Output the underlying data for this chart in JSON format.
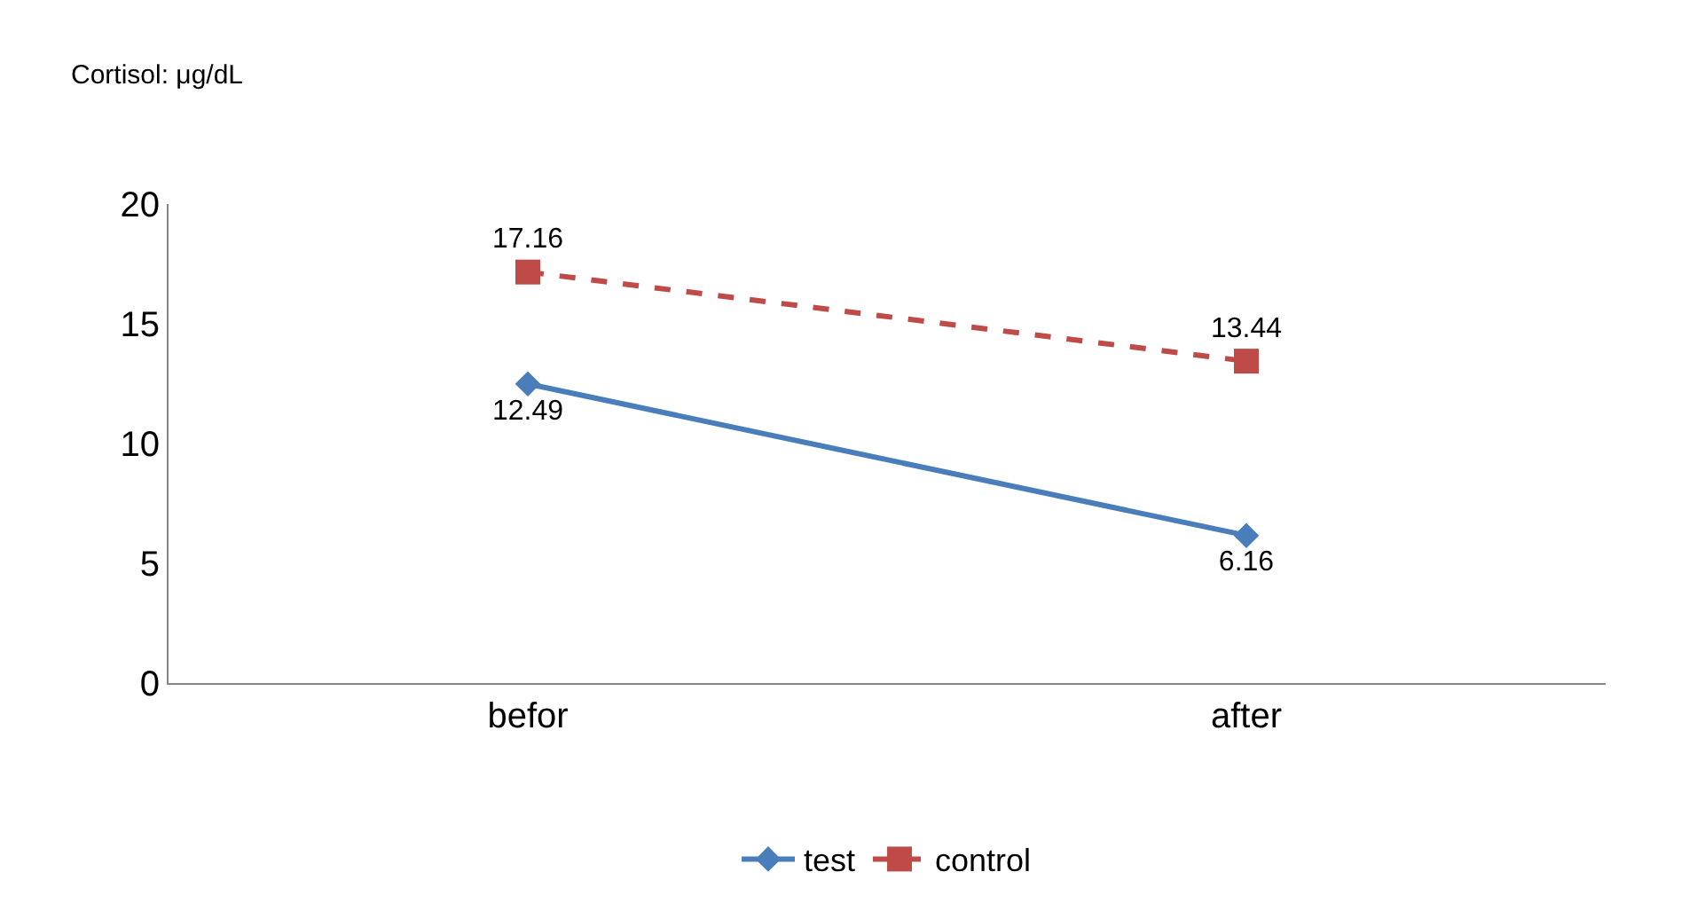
{
  "chart_data": {
    "type": "line",
    "ylabel": "Cortisol: μg/dL",
    "categories": [
      "befor",
      "after"
    ],
    "series": [
      {
        "name": "test",
        "color": "#4a7ebb",
        "values": [
          12.49,
          6.16
        ],
        "marker": "diamond",
        "line_style": "solid"
      },
      {
        "name": "control",
        "color": "#be4b48",
        "values": [
          17.16,
          13.44
        ],
        "marker": "square",
        "line_style": "dashed"
      }
    ],
    "ylim": [
      0,
      20
    ],
    "yticks": [
      0,
      5,
      10,
      15,
      20
    ],
    "legend": "bottom",
    "data_labels": true
  }
}
